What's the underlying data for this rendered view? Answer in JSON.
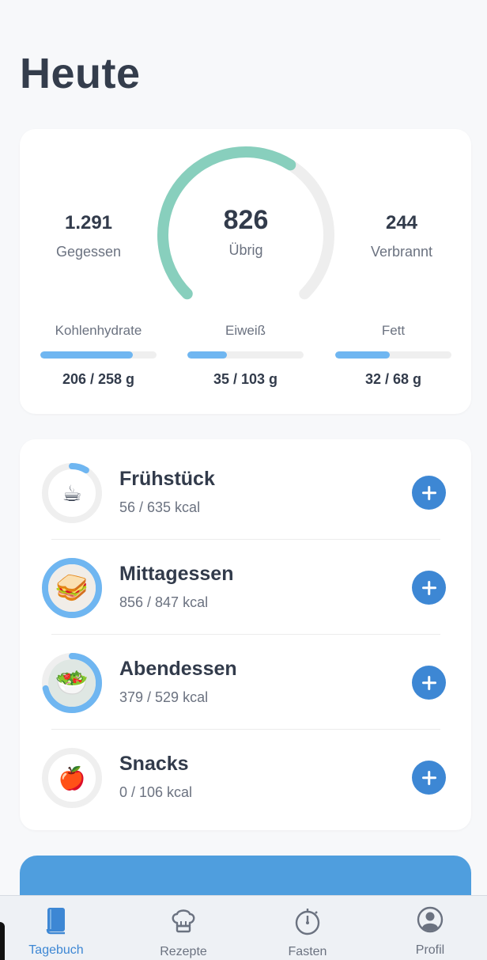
{
  "page": {
    "title": "Heute"
  },
  "summary": {
    "eaten": {
      "value": "1.291",
      "label": "Gegessen"
    },
    "remaining": {
      "value": "826",
      "label": "Übrig"
    },
    "burned": {
      "value": "244",
      "label": "Verbrannt"
    },
    "gauge_progress": 0.62,
    "gauge_color": "#88cfbd",
    "gauge_track_color": "#eeeeee"
  },
  "macros": [
    {
      "label": "Kohlenhydrate",
      "value": "206 / 258 g",
      "current": 206,
      "goal": 258
    },
    {
      "label": "Eiweiß",
      "value": "35 / 103 g",
      "current": 35,
      "goal": 103
    },
    {
      "label": "Fett",
      "value": "32 / 68 g",
      "current": 32,
      "goal": 68
    }
  ],
  "meals": [
    {
      "name": "Frühstück",
      "kcal": "56 / 635 kcal",
      "current": 56,
      "goal": 635,
      "icon": "☕",
      "icon_name": "coffee-cup-icon"
    },
    {
      "name": "Mittagessen",
      "kcal": "856 / 847 kcal",
      "current": 856,
      "goal": 847,
      "icon": "🥪",
      "icon_name": "sandwich-image"
    },
    {
      "name": "Abendessen",
      "kcal": "379 / 529 kcal",
      "current": 379,
      "goal": 529,
      "icon": "🥗",
      "icon_name": "salad-image"
    },
    {
      "name": "Snacks",
      "kcal": "0 / 106 kcal",
      "current": 0,
      "goal": 106,
      "icon": "🍎",
      "icon_name": "apple-icon"
    }
  ],
  "colors": {
    "accent": "#3d87d4",
    "macro_bar": "#6fb6f1",
    "ring": "#6fb6f1",
    "promo": "#4f9ede"
  },
  "tabs": [
    {
      "label": "Tagebuch",
      "icon": "book-icon",
      "active": true
    },
    {
      "label": "Rezepte",
      "icon": "chef-hat-icon",
      "active": false
    },
    {
      "label": "Fasten",
      "icon": "stopwatch-icon",
      "active": false
    },
    {
      "label": "Profil",
      "icon": "profile-icon",
      "active": false
    }
  ]
}
